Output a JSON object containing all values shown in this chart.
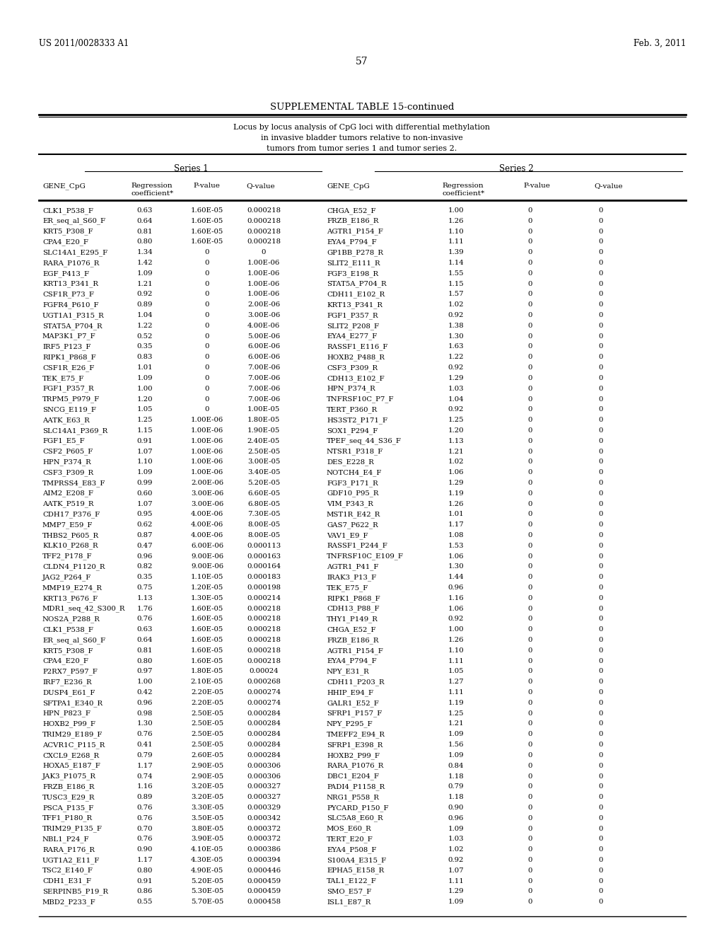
{
  "header_left": "US 2011/0028333 A1",
  "header_right": "Feb. 3, 2011",
  "page_number": "57",
  "table_title": "SUPPLEMENTAL TABLE 15-continued",
  "table_subtitle_line1": "Locus by locus analysis of CpG loci with differential methylation",
  "table_subtitle_line2": "in invasive bladder tumors relative to non-invasive",
  "table_subtitle_line3": "tumors from tumor series 1 and tumor series 2.",
  "series1_label": "Series 1",
  "series2_label": "Series 2",
  "rows": [
    [
      "CLK1_P538_F",
      "0.63",
      "1.60E-05",
      "0.000218",
      "CHGA_E52_F",
      "1.00",
      "0",
      "0"
    ],
    [
      "ER_seq_al_S60_F",
      "0.64",
      "1.60E-05",
      "0.000218",
      "FRZB_E186_R",
      "1.26",
      "0",
      "0"
    ],
    [
      "KRT5_P308_F",
      "0.81",
      "1.60E-05",
      "0.000218",
      "AGTR1_P154_F",
      "1.10",
      "0",
      "0"
    ],
    [
      "CPA4_E20_F",
      "0.80",
      "1.60E-05",
      "0.000218",
      "EYA4_P794_F",
      "1.11",
      "0",
      "0"
    ],
    [
      "SLC14A1_E295_F",
      "1.34",
      "0",
      "0",
      "GP1BB_P278_R",
      "1.39",
      "0",
      "0"
    ],
    [
      "RARA_P1076_R",
      "1.42",
      "0",
      "1.00E-06",
      "SLIT2_E111_R",
      "1.14",
      "0",
      "0"
    ],
    [
      "EGF_P413_F",
      "1.09",
      "0",
      "1.00E-06",
      "FGF3_E198_R",
      "1.55",
      "0",
      "0"
    ],
    [
      "KRT13_P341_R",
      "1.21",
      "0",
      "1.00E-06",
      "STAT5A_P704_R",
      "1.15",
      "0",
      "0"
    ],
    [
      "CSF1R_P73_F",
      "0.92",
      "0",
      "1.00E-06",
      "CDH11_E102_R",
      "1.57",
      "0",
      "0"
    ],
    [
      "FGFR4_P610_F",
      "0.89",
      "0",
      "2.00E-06",
      "KRT13_P341_R",
      "1.02",
      "0",
      "0"
    ],
    [
      "UGT1A1_P315_R",
      "1.04",
      "0",
      "3.00E-06",
      "FGF1_P357_R",
      "0.92",
      "0",
      "0"
    ],
    [
      "STAT5A_P704_R",
      "1.22",
      "0",
      "4.00E-06",
      "SLIT2_P208_F",
      "1.38",
      "0",
      "0"
    ],
    [
      "MAP3K1_P7_F",
      "0.52",
      "0",
      "5.00E-06",
      "EYA4_E277_F",
      "1.30",
      "0",
      "0"
    ],
    [
      "IRF5_P123_F",
      "0.35",
      "0",
      "6.00E-06",
      "RASSF1_E116_F",
      "1.63",
      "0",
      "0"
    ],
    [
      "RIPK1_P868_F",
      "0.83",
      "0",
      "6.00E-06",
      "HOXB2_P488_R",
      "1.22",
      "0",
      "0"
    ],
    [
      "CSF1R_E26_F",
      "1.01",
      "0",
      "7.00E-06",
      "CSF3_P309_R",
      "0.92",
      "0",
      "0"
    ],
    [
      "TEK_E75_F",
      "1.09",
      "0",
      "7.00E-06",
      "CDH13_E102_F",
      "1.29",
      "0",
      "0"
    ],
    [
      "FGF1_P357_R",
      "1.00",
      "0",
      "7.00E-06",
      "HPN_P374_R",
      "1.03",
      "0",
      "0"
    ],
    [
      "TRPM5_P979_F",
      "1.20",
      "0",
      "7.00E-06",
      "TNFRSF10C_P7_F",
      "1.04",
      "0",
      "0"
    ],
    [
      "SNCG_E119_F",
      "1.05",
      "0",
      "1.00E-05",
      "TERT_P360_R",
      "0.92",
      "0",
      "0"
    ],
    [
      "AATK_E63_R",
      "1.25",
      "1.00E-06",
      "1.80E-05",
      "HS3ST2_P171_F",
      "1.25",
      "0",
      "0"
    ],
    [
      "SLC14A1_P369_R",
      "1.15",
      "1.00E-06",
      "1.90E-05",
      "SOX1_P294_F",
      "1.20",
      "0",
      "0"
    ],
    [
      "FGF1_E5_F",
      "0.91",
      "1.00E-06",
      "2.40E-05",
      "TPEF_seq_44_S36_F",
      "1.13",
      "0",
      "0"
    ],
    [
      "CSF2_P605_F",
      "1.07",
      "1.00E-06",
      "2.50E-05",
      "NTSR1_P318_F",
      "1.21",
      "0",
      "0"
    ],
    [
      "HPN_P374_R",
      "1.10",
      "1.00E-06",
      "3.00E-05",
      "DES_E228_R",
      "1.02",
      "0",
      "0"
    ],
    [
      "CSF3_P309_R",
      "1.09",
      "1.00E-06",
      "3.40E-05",
      "NOTCH4_E4_F",
      "1.06",
      "0",
      "0"
    ],
    [
      "TMPRSS4_E83_F",
      "0.99",
      "2.00E-06",
      "5.20E-05",
      "FGF3_P171_R",
      "1.29",
      "0",
      "0"
    ],
    [
      "AIM2_E208_F",
      "0.60",
      "3.00E-06",
      "6.60E-05",
      "GDF10_P95_R",
      "1.19",
      "0",
      "0"
    ],
    [
      "AATK_P519_R",
      "1.07",
      "3.00E-06",
      "6.80E-05",
      "VIM_P343_R",
      "1.26",
      "0",
      "0"
    ],
    [
      "CDH17_P376_F",
      "0.95",
      "4.00E-06",
      "7.30E-05",
      "MST1R_E42_R",
      "1.01",
      "0",
      "0"
    ],
    [
      "MMP7_E59_F",
      "0.62",
      "4.00E-06",
      "8.00E-05",
      "GAS7_P622_R",
      "1.17",
      "0",
      "0"
    ],
    [
      "THBS2_P605_R",
      "0.87",
      "4.00E-06",
      "8.00E-05",
      "VAV1_E9_F",
      "1.08",
      "0",
      "0"
    ],
    [
      "KLK10_P268_R",
      "0.47",
      "6.00E-06",
      "0.000113",
      "RASSF1_P244_F",
      "1.53",
      "0",
      "0"
    ],
    [
      "TFF2_P178_F",
      "0.96",
      "9.00E-06",
      "0.000163",
      "TNFRSF10C_E109_F",
      "1.06",
      "0",
      "0"
    ],
    [
      "CLDN4_P1120_R",
      "0.82",
      "9.00E-06",
      "0.000164",
      "AGTR1_P41_F",
      "1.30",
      "0",
      "0"
    ],
    [
      "JAG2_P264_F",
      "0.35",
      "1.10E-05",
      "0.000183",
      "IRAK3_P13_F",
      "1.44",
      "0",
      "0"
    ],
    [
      "MMP19_E274_R",
      "0.75",
      "1.20E-05",
      "0.000198",
      "TEK_E75_F",
      "0.96",
      "0",
      "0"
    ],
    [
      "KRT13_P676_F",
      "1.13",
      "1.30E-05",
      "0.000214",
      "RIPK1_P868_F",
      "1.16",
      "0",
      "0"
    ],
    [
      "MDR1_seq_42_S300_R",
      "1.76",
      "1.60E-05",
      "0.000218",
      "CDH13_P88_F",
      "1.06",
      "0",
      "0"
    ],
    [
      "NOS2A_P288_R",
      "0.76",
      "1.60E-05",
      "0.000218",
      "THY1_P149_R",
      "0.92",
      "0",
      "0"
    ],
    [
      "CLK1_P538_F",
      "0.63",
      "1.60E-05",
      "0.000218",
      "CHGA_E52_F",
      "1.00",
      "0",
      "0"
    ],
    [
      "ER_seq_al_S60_F",
      "0.64",
      "1.60E-05",
      "0.000218",
      "FRZB_E186_R",
      "1.26",
      "0",
      "0"
    ],
    [
      "KRT5_P308_F",
      "0.81",
      "1.60E-05",
      "0.000218",
      "AGTR1_P154_F",
      "1.10",
      "0",
      "0"
    ],
    [
      "CPA4_E20_F",
      "0.80",
      "1.60E-05",
      "0.000218",
      "EYA4_P794_F",
      "1.11",
      "0",
      "0"
    ],
    [
      "P2RX7_P597_F",
      "0.97",
      "1.80E-05",
      "0.00024",
      "NPY_E31_R",
      "1.05",
      "0",
      "0"
    ],
    [
      "IRF7_E236_R",
      "1.00",
      "2.10E-05",
      "0.000268",
      "CDH11_P203_R",
      "1.27",
      "0",
      "0"
    ],
    [
      "DUSP4_E61_F",
      "0.42",
      "2.20E-05",
      "0.000274",
      "HHIP_E94_F",
      "1.11",
      "0",
      "0"
    ],
    [
      "SFTPA1_E340_R",
      "0.96",
      "2.20E-05",
      "0.000274",
      "GALR1_E52_F",
      "1.19",
      "0",
      "0"
    ],
    [
      "HPN_P823_F",
      "0.98",
      "2.50E-05",
      "0.000284",
      "SFRP1_P157_F",
      "1.25",
      "0",
      "0"
    ],
    [
      "HOXB2_P99_F",
      "1.30",
      "2.50E-05",
      "0.000284",
      "NPY_P295_F",
      "1.21",
      "0",
      "0"
    ],
    [
      "TRIM29_E189_F",
      "0.76",
      "2.50E-05",
      "0.000284",
      "TMEFF2_E94_R",
      "1.09",
      "0",
      "0"
    ],
    [
      "ACVR1C_P115_R",
      "0.41",
      "2.50E-05",
      "0.000284",
      "SFRP1_E398_R",
      "1.56",
      "0",
      "0"
    ],
    [
      "CXCL9_E268_R",
      "0.79",
      "2.60E-05",
      "0.000284",
      "HOXB2_P99_F",
      "1.09",
      "0",
      "0"
    ],
    [
      "HOXA5_E187_F",
      "1.17",
      "2.90E-05",
      "0.000306",
      "RARA_P1076_R",
      "0.84",
      "0",
      "0"
    ],
    [
      "JAK3_P1075_R",
      "0.74",
      "2.90E-05",
      "0.000306",
      "DBC1_E204_F",
      "1.18",
      "0",
      "0"
    ],
    [
      "FRZB_E186_R",
      "1.16",
      "3.20E-05",
      "0.000327",
      "PADI4_P1158_R",
      "0.79",
      "0",
      "0"
    ],
    [
      "TUSC3_E29_R",
      "0.89",
      "3.20E-05",
      "0.000327",
      "NRG1_P558_R",
      "1.18",
      "0",
      "0"
    ],
    [
      "PSCA_P135_F",
      "0.76",
      "3.30E-05",
      "0.000329",
      "PYCARD_P150_F",
      "0.90",
      "0",
      "0"
    ],
    [
      "TFF1_P180_R",
      "0.76",
      "3.50E-05",
      "0.000342",
      "SLC5A8_E60_R",
      "0.96",
      "0",
      "0"
    ],
    [
      "TRIM29_P135_F",
      "0.70",
      "3.80E-05",
      "0.000372",
      "MOS_E60_R",
      "1.09",
      "0",
      "0"
    ],
    [
      "NBL1_P24_F",
      "0.76",
      "3.90E-05",
      "0.000372",
      "TERT_E20_F",
      "1.03",
      "0",
      "0"
    ],
    [
      "RARA_P176_R",
      "0.90",
      "4.10E-05",
      "0.000386",
      "EYA4_P508_F",
      "1.02",
      "0",
      "0"
    ],
    [
      "UGT1A2_E11_F",
      "1.17",
      "4.30E-05",
      "0.000394",
      "S100A4_E315_F",
      "0.92",
      "0",
      "0"
    ],
    [
      "TSC2_E140_F",
      "0.80",
      "4.90E-05",
      "0.000446",
      "EPHA5_E158_R",
      "1.07",
      "0",
      "0"
    ],
    [
      "CDH1_E31_F",
      "0.91",
      "5.20E-05",
      "0.000459",
      "TAL1_E122_F",
      "1.11",
      "0",
      "0"
    ],
    [
      "SERPINB5_P19_R",
      "0.86",
      "5.30E-05",
      "0.000459",
      "SMO_E57_F",
      "1.29",
      "0",
      "0"
    ],
    [
      "MBD2_P233_F",
      "0.55",
      "5.70E-05",
      "0.000458",
      "ISL1_E87_R",
      "1.09",
      "0",
      "0"
    ]
  ]
}
